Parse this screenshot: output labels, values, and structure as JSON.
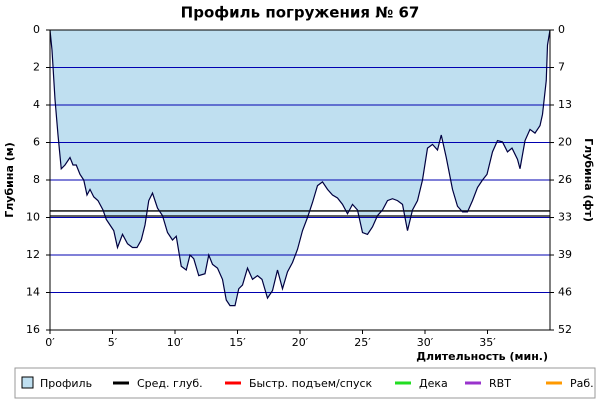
{
  "chart_data": {
    "type": "area",
    "title": "Профиль погружения № 67",
    "y_label": "Глубина (м)",
    "y2_label": "Глубина (фт)",
    "x_label": "Длительность (мин.)",
    "xlim": [
      0,
      40
    ],
    "xticks": [
      {
        "value": 0,
        "label": "0′"
      },
      {
        "value": 5,
        "label": "5′"
      },
      {
        "value": 10,
        "label": "10′"
      },
      {
        "value": 15,
        "label": "15′"
      },
      {
        "value": 20,
        "label": "20′"
      },
      {
        "value": 25,
        "label": "25′"
      },
      {
        "value": 30,
        "label": "30′"
      },
      {
        "value": 35,
        "label": "35′"
      }
    ],
    "ylim": [
      0,
      16
    ],
    "yticks": [
      0,
      2,
      4,
      6,
      8,
      10,
      12,
      14,
      16
    ],
    "y_reversed": true,
    "grid": true,
    "grid_color": "#0000b0",
    "y2lim": [
      0,
      52.49
    ],
    "y2ticks": [
      0,
      {
        "value": 6.56,
        "label": "7"
      },
      {
        "value": 13.12,
        "label": "13"
      },
      {
        "value": 19.69,
        "label": "20"
      },
      {
        "value": 26.25,
        "label": "26"
      },
      {
        "value": 32.81,
        "label": "33"
      },
      {
        "value": 39.37,
        "label": "39"
      },
      {
        "value": 45.93,
        "label": "46"
      },
      {
        "value": 52.49,
        "label": "52"
      }
    ],
    "series": [
      {
        "name": "Профиль",
        "color": "#bfdff0",
        "line_color": "#000040",
        "x": [
          0,
          0.16,
          0.4,
          0.64,
          0.9,
          1.2,
          1.6,
          1.84,
          2.1,
          2.4,
          2.7,
          2.96,
          3.2,
          3.5,
          3.84,
          4.24,
          4.5,
          4.8,
          5.1,
          5.4,
          5.8,
          6.2,
          6.6,
          6.96,
          7.3,
          7.6,
          7.9,
          8.2,
          8.6,
          9.0,
          9.4,
          9.8,
          10.1,
          10.5,
          10.9,
          11.2,
          11.5,
          11.9,
          12.4,
          12.7,
          13.0,
          13.4,
          13.8,
          14.1,
          14.4,
          14.8,
          15.1,
          15.4,
          15.8,
          16.2,
          16.6,
          16.96,
          17.4,
          17.8,
          18.2,
          18.6,
          19.0,
          19.4,
          19.8,
          20.2,
          20.6,
          21.0,
          21.4,
          21.8,
          22.2,
          22.6,
          23.0,
          23.4,
          23.8,
          24.2,
          24.6,
          25.0,
          25.4,
          25.8,
          26.2,
          26.6,
          27.0,
          27.4,
          27.8,
          28.2,
          28.6,
          29.0,
          29.4,
          29.8,
          30.2,
          30.6,
          31.0,
          31.3,
          31.7,
          32.2,
          32.6,
          33.0,
          33.4,
          33.8,
          34.2,
          34.6,
          34.96,
          35.4,
          35.8,
          36.2,
          36.6,
          36.96,
          37.4,
          37.6,
          38.0,
          38.4,
          38.8,
          39.2,
          39.4,
          39.7,
          39.8,
          40.0
        ],
        "values": [
          0,
          1.07,
          3.7,
          5.6,
          7.4,
          7.2,
          6.8,
          7.2,
          7.2,
          7.7,
          8.0,
          8.8,
          8.5,
          8.9,
          9.1,
          9.6,
          10.1,
          10.4,
          10.7,
          11.6,
          10.9,
          11.4,
          11.6,
          11.6,
          11.2,
          10.4,
          9.1,
          8.7,
          9.5,
          9.9,
          10.8,
          11.2,
          11.0,
          12.6,
          12.8,
          12.0,
          12.2,
          13.1,
          13.0,
          12.0,
          12.5,
          12.7,
          13.3,
          14.4,
          14.7,
          14.7,
          13.8,
          13.6,
          12.7,
          13.3,
          13.1,
          13.3,
          14.3,
          13.9,
          12.8,
          13.8,
          12.9,
          12.4,
          11.7,
          10.7,
          10.0,
          9.2,
          8.3,
          8.1,
          8.5,
          8.8,
          8.96,
          9.3,
          9.8,
          9.3,
          9.6,
          10.8,
          10.9,
          10.5,
          9.9,
          9.6,
          9.1,
          9.0,
          9.1,
          9.3,
          10.7,
          9.6,
          9.1,
          8.0,
          6.3,
          6.1,
          6.4,
          5.6,
          6.8,
          8.5,
          9.4,
          9.7,
          9.7,
          9.1,
          8.4,
          8.0,
          7.7,
          6.5,
          5.9,
          5.97,
          6.5,
          6.3,
          6.9,
          7.4,
          5.9,
          5.3,
          5.5,
          5.1,
          4.5,
          2.7,
          0.8,
          0
        ]
      },
      {
        "name": "Сред. глуб.",
        "color": "#000000",
        "values": [
          9.65,
          9.92
        ]
      },
      {
        "name": "Быстр. подъем/спуск",
        "color": "#ff0000",
        "values": []
      },
      {
        "name": "Дека",
        "color": "#22dd22",
        "values": []
      },
      {
        "name": "RBT",
        "color": "#9933cc",
        "values": []
      },
      {
        "name": "Раб.",
        "color": "#ff9900",
        "values": []
      }
    ]
  }
}
